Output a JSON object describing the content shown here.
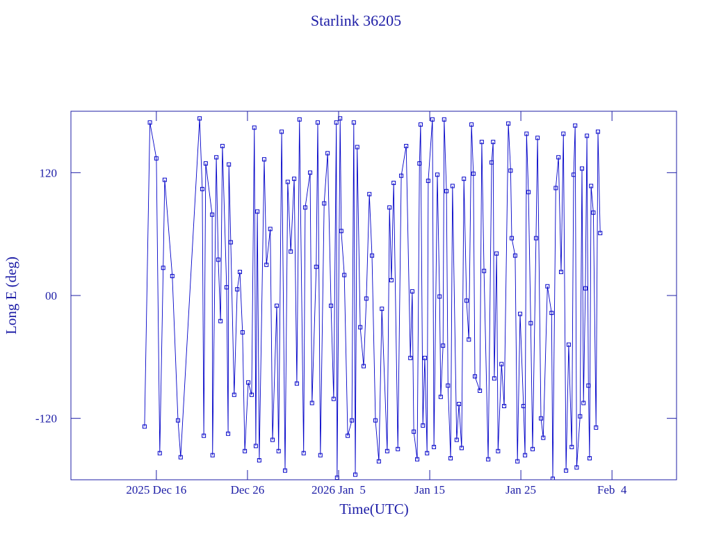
{
  "chart_data": {
    "type": "line",
    "title": "Starlink 36205",
    "x_label": "Time(UTC)",
    "y_label": "Long E (deg)",
    "color": "#0000c8",
    "markers": true,
    "xlim": [
      "2025-12-06T15:00",
      "2026-02-11T02:00"
    ],
    "xticks": [
      {
        "value": "2025-12-16",
        "label": "2025 Dec 16"
      },
      {
        "value": "2025-12-26",
        "label": "Dec 26"
      },
      {
        "value": "2026-01-05",
        "label": "2026 Jan  5"
      },
      {
        "value": "2026-01-15",
        "label": "Jan 15"
      },
      {
        "value": "2026-01-25",
        "label": "Jan 25"
      },
      {
        "value": "2026-02-04",
        "label": "Feb  4"
      }
    ],
    "ylim": [
      -180,
      180
    ],
    "yticks": [
      -120,
      {
        "value": 0,
        "label": "00"
      },
      120
    ],
    "x": [
      "2025-12-14T17:00",
      "2025-12-15T07:00",
      "2025-12-16T00:00",
      "2025-12-16T09:00",
      "2025-12-16T18:00",
      "2025-12-16T22:00",
      "2025-12-17T18:00",
      "2025-12-18T09:00",
      "2025-12-18T16:00",
      "2025-12-20T18:00",
      "2025-12-21T01:00",
      "2025-12-21T05:00",
      "2025-12-21T10:00",
      "2025-12-22T03:00",
      "2025-12-22T04:00",
      "2025-12-22T14:00",
      "2025-12-22T19:00",
      "2025-12-23T01:00",
      "2025-12-23T06:00",
      "2025-12-23T17:00",
      "2025-12-23T21:00",
      "2025-12-23T23:00",
      "2025-12-24T04:00",
      "2025-12-24T13:00",
      "2025-12-24T21:00",
      "2025-12-25T04:00",
      "2025-12-25T11:00",
      "2025-12-25T17:00",
      "2025-12-26T02:00",
      "2025-12-26T11:00",
      "2025-12-26T18:00",
      "2025-12-26T22:00",
      "2025-12-27T02:00",
      "2025-12-27T07:00",
      "2025-12-27T20:00",
      "2025-12-28T02:00",
      "2025-12-28T12:00",
      "2025-12-28T18:00",
      "2025-12-29T05:00",
      "2025-12-29T10:00",
      "2025-12-29T18:00",
      "2025-12-30T03:00",
      "2025-12-30T10:00",
      "2025-12-30T18:00",
      "2025-12-31T03:00",
      "2025-12-31T10:00",
      "2025-12-31T17:00",
      "2026-01-01T04:00",
      "2026-01-01T08:00",
      "2026-01-01T21:00",
      "2026-01-02T02:00",
      "2026-01-02T13:00",
      "2026-01-02T17:00",
      "2026-01-03T00:00",
      "2026-01-03T10:00",
      "2026-01-03T19:00",
      "2026-01-04T04:00",
      "2026-01-04T11:00",
      "2026-01-04T18:00",
      "2026-01-04T20:00",
      "2026-01-05T04:00",
      "2026-01-05T07:00",
      "2026-01-05T15:00",
      "2026-01-06T00:00",
      "2026-01-06T11:00",
      "2026-01-06T16:00",
      "2026-01-06T20:00",
      "2026-01-07T01:00",
      "2026-01-07T09:00",
      "2026-01-07T18:00",
      "2026-01-08T01:00",
      "2026-01-08T09:00",
      "2026-01-08T16:00",
      "2026-01-09T01:00",
      "2026-01-09T10:00",
      "2026-01-09T18:00",
      "2026-01-10T08:00",
      "2026-01-10T14:00",
      "2026-01-10T19:00",
      "2026-01-11T01:00",
      "2026-01-11T12:00",
      "2026-01-11T21:00",
      "2026-01-12T10:00",
      "2026-01-12T21:00",
      "2026-01-13T02:00",
      "2026-01-13T06:00",
      "2026-01-13T15:00",
      "2026-01-13T21:00",
      "2026-01-14T00:00",
      "2026-01-14T06:00",
      "2026-01-14T11:00",
      "2026-01-14T17:00",
      "2026-01-14T20:00",
      "2026-01-15T07:00",
      "2026-01-15T11:00",
      "2026-01-15T20:00",
      "2026-01-16T02:00",
      "2026-01-16T05:00",
      "2026-01-16T11:00",
      "2026-01-16T14:00",
      "2026-01-16T20:00",
      "2026-01-17T00:00",
      "2026-01-17T07:00",
      "2026-01-17T12:00",
      "2026-01-17T23:00",
      "2026-01-18T05:00",
      "2026-01-18T12:00",
      "2026-01-18T18:00",
      "2026-01-19T01:00",
      "2026-01-19T07:00",
      "2026-01-19T14:00",
      "2026-01-19T19:00",
      "2026-01-19T23:00",
      "2026-01-20T12:00",
      "2026-01-20T17:00",
      "2026-01-20T23:00",
      "2026-01-21T10:00",
      "2026-01-21T19:00",
      "2026-01-21T23:00",
      "2026-01-22T02:00",
      "2026-01-22T08:00",
      "2026-01-22T12:00",
      "2026-01-22T21:00",
      "2026-01-23T04:00",
      "2026-01-23T15:00",
      "2026-01-23T21:00",
      "2026-01-24T00:00",
      "2026-01-24T09:00",
      "2026-01-24T15:00",
      "2026-01-24T22:00",
      "2026-01-25T07:00",
      "2026-01-25T11:00",
      "2026-01-25T15:00",
      "2026-01-25T20:00",
      "2026-01-26T02:00",
      "2026-01-26T07:00",
      "2026-01-26T16:00",
      "2026-01-26T20:00",
      "2026-01-27T05:00",
      "2026-01-27T11:00",
      "2026-01-27T22:00",
      "2026-01-28T09:00",
      "2026-01-28T12:00",
      "2026-01-28T20:00",
      "2026-01-29T03:00",
      "2026-01-29T10:00",
      "2026-01-29T16:00",
      "2026-01-29T23:00",
      "2026-01-30T06:00",
      "2026-01-30T14:00",
      "2026-01-30T19:00",
      "2026-01-30T23:00",
      "2026-01-31T03:00",
      "2026-01-31T12:00",
      "2026-01-31T17:00",
      "2026-01-31T21:00",
      "2026-02-01T02:00",
      "2026-02-01T06:00",
      "2026-02-01T10:00",
      "2026-02-01T13:00",
      "2026-02-01T17:00",
      "2026-02-01T23:00",
      "2026-02-02T06:00",
      "2026-02-02T11:00",
      "2026-02-02T17:00"
    ],
    "values": [
      -128,
      169,
      134,
      -154,
      27,
      113,
      19,
      -122,
      -158,
      173,
      104,
      -137,
      129,
      79,
      -156,
      135,
      35,
      -25,
      146,
      8,
      -135,
      128,
      52,
      -97,
      6,
      23,
      -36,
      -152,
      -85,
      -97,
      164,
      -147,
      82,
      -161,
      133,
      30,
      65,
      -141,
      -10,
      -152,
      160,
      -171,
      111,
      43,
      114,
      -86,
      172,
      -154,
      86,
      120,
      -105,
      28,
      169,
      -156,
      90,
      139,
      -10,
      -101,
      169,
      -178,
      173,
      63,
      20,
      -137,
      -122,
      169,
      -175,
      145,
      -31,
      -69,
      -3,
      99,
      39,
      -122,
      -162,
      -13,
      -152,
      86,
      15,
      110,
      -150,
      117,
      146,
      -61,
      4,
      -133,
      -160,
      129,
      167,
      -127,
      -61,
      -154,
      112,
      172,
      -148,
      118,
      -1,
      -99,
      -49,
      172,
      102,
      -88,
      -159,
      107,
      -141,
      -106,
      -149,
      114,
      -5,
      -43,
      167,
      119,
      -79,
      -93,
      150,
      24,
      -160,
      130,
      150,
      -81,
      41,
      -152,
      -67,
      -108,
      168,
      122,
      56,
      39,
      -162,
      -18,
      -108,
      -156,
      158,
      101,
      -27,
      -150,
      56,
      154,
      -120,
      -139,
      9,
      -17,
      -179,
      105,
      135,
      23,
      158,
      -171,
      -48,
      -148,
      118,
      166,
      -168,
      -118,
      124,
      -105,
      7,
      156,
      -88,
      -159,
      107,
      81,
      -129,
      160,
      61
    ]
  }
}
